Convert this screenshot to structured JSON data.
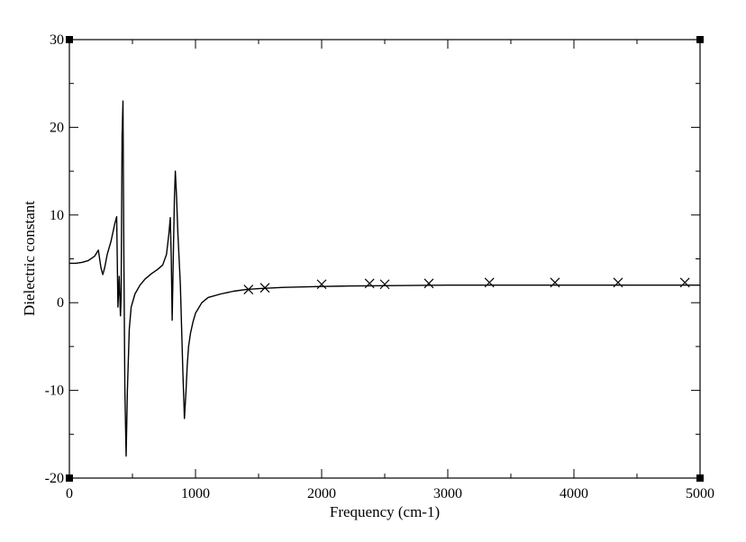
{
  "chart_data": {
    "type": "line",
    "xlabel": "Frequency (cm-1)",
    "ylabel": "Dielectric constant",
    "xlim": [
      0,
      5000
    ],
    "ylim": [
      -20,
      30
    ],
    "xticks": [
      0,
      1000,
      2000,
      3000,
      4000,
      5000
    ],
    "yticks": [
      -20,
      -10,
      0,
      10,
      20,
      30
    ],
    "x_tick_labels": [
      "0",
      "1000",
      "2000",
      "3000",
      "4000",
      "5000"
    ],
    "y_tick_labels": [
      "-20",
      "-10",
      "0",
      "10",
      "20",
      "30"
    ],
    "grid": false,
    "legend": "none",
    "series": [
      {
        "style": "line",
        "color": "#000000",
        "x": [
          0,
          50,
          100,
          150,
          200,
          230,
          250,
          265,
          280,
          300,
          330,
          360,
          375,
          385,
          395,
          405,
          410,
          418,
          425,
          432,
          440,
          450,
          460,
          475,
          490,
          520,
          560,
          600,
          650,
          700,
          740,
          770,
          790,
          800,
          808,
          815,
          825,
          833,
          840,
          850,
          860,
          870,
          880,
          890,
          900,
          912,
          925,
          935,
          945,
          960,
          980,
          1000,
          1050,
          1100,
          1200,
          1300,
          1400,
          1500,
          1700,
          2000,
          2200,
          3000,
          4000,
          5000
        ],
        "y": [
          4.5,
          4.5,
          4.6,
          4.8,
          5.3,
          6.0,
          4.0,
          3.2,
          4.0,
          5.5,
          7.0,
          9.0,
          9.8,
          -0.5,
          3.0,
          -1.5,
          0.5,
          19.0,
          23.0,
          5.0,
          -10.0,
          -17.5,
          -10.0,
          -3.0,
          -0.5,
          1.0,
          2.0,
          2.7,
          3.3,
          3.8,
          4.3,
          5.5,
          8.0,
          9.7,
          5.0,
          -2.0,
          6.0,
          12.0,
          15.0,
          12.0,
          8.0,
          5.0,
          2.0,
          -3.0,
          -8.0,
          -13.2,
          -10.0,
          -7.0,
          -5.0,
          -3.5,
          -2.2,
          -1.2,
          0.0,
          0.6,
          1.0,
          1.3,
          1.5,
          1.6,
          1.75,
          1.85,
          1.9,
          2.0,
          2.0,
          2.0
        ]
      },
      {
        "style": "markers",
        "marker": "x",
        "color": "#000000",
        "x": [
          1420,
          1550,
          2000,
          2380,
          2500,
          2850,
          3330,
          3850,
          4350,
          4880
        ],
        "y": [
          1.5,
          1.7,
          2.1,
          2.2,
          2.1,
          2.2,
          2.3,
          2.3,
          2.3,
          2.3
        ]
      }
    ]
  }
}
